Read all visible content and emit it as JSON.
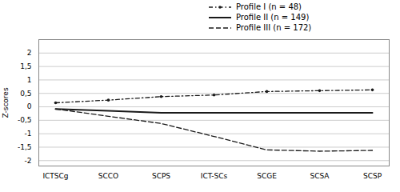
{
  "chart_data": {
    "type": "line",
    "categories": [
      "ICTSCg",
      "SCCO",
      "SCPS",
      "ICT-SCs",
      "SCGE",
      "SCSA",
      "SCSP"
    ],
    "series": [
      {
        "name": "Profile I (n = 48)",
        "color": "#1a1a1a",
        "line_style": "dashdot",
        "marker": "dot",
        "values": [
          0.15,
          0.25,
          0.38,
          0.44,
          0.57,
          0.6,
          0.63
        ]
      },
      {
        "name": "Profile II (n = 149)",
        "color": "#1a1a1a",
        "line_style": "solid",
        "values": [
          -0.08,
          -0.15,
          -0.22,
          -0.22,
          -0.22,
          -0.22,
          -0.22
        ]
      },
      {
        "name": "Profile III (n = 172)",
        "color": "#1a1a1a",
        "line_style": "dashed",
        "values": [
          -0.08,
          -0.35,
          -0.62,
          -1.1,
          -1.6,
          -1.65,
          -1.62
        ]
      }
    ],
    "ylabel": "Z-scores",
    "ylim": [
      -2.2,
      2.5
    ],
    "yticks": [
      -2,
      {
        "value": -1.5,
        "label": "-1,5"
      },
      -1,
      {
        "value": -0.5,
        "label": "-0,5"
      },
      0,
      {
        "value": 0.5,
        "label": "0,5"
      },
      1,
      {
        "value": 1.5,
        "label": "1,5"
      },
      2
    ],
    "grid": true,
    "legend": "upper right"
  }
}
